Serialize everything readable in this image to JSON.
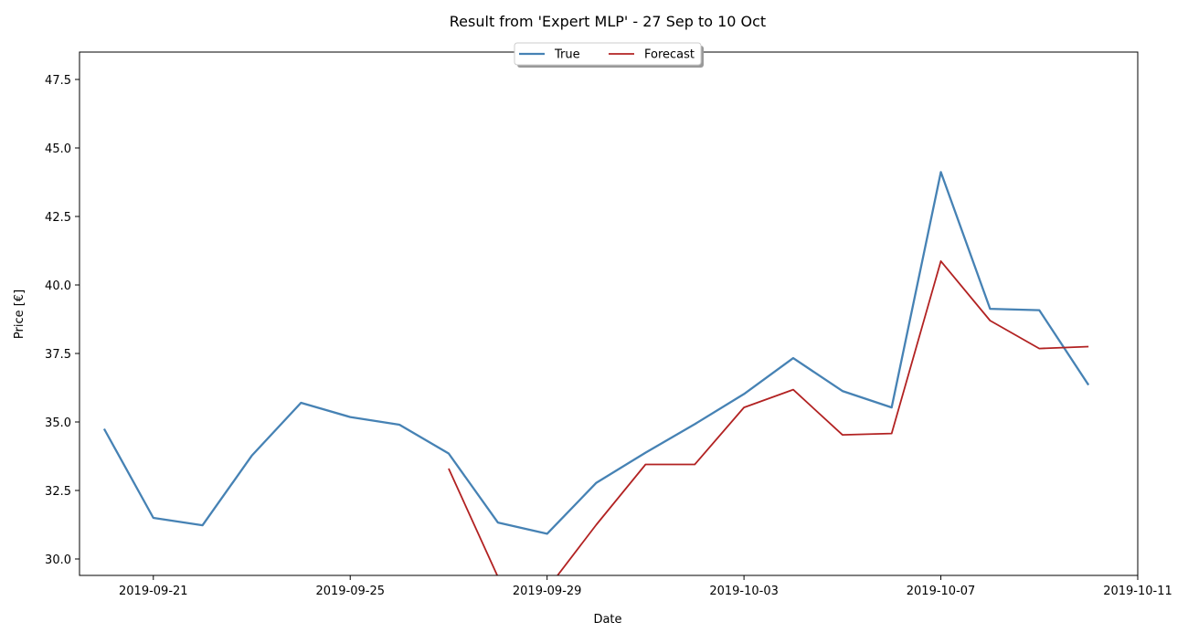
{
  "chart_data": {
    "type": "line",
    "title": "Result from 'Expert MLP' - 27 Sep to 10 Oct",
    "xlabel": "Date",
    "ylabel": "Price [€]",
    "xlim": [
      "2019-09-19T12:00",
      "2019-10-11"
    ],
    "ylim": [
      29.4,
      48.5
    ],
    "x_ticks": [
      "2019-09-21",
      "2019-09-25",
      "2019-09-29",
      "2019-10-03",
      "2019-10-07",
      "2019-10-11"
    ],
    "y_ticks": [
      30.0,
      32.5,
      35.0,
      37.5,
      40.0,
      42.5,
      45.0,
      47.5
    ],
    "y_tick_labels": [
      "30.0",
      "32.5",
      "35.0",
      "37.5",
      "40.0",
      "42.5",
      "45.0",
      "47.5"
    ],
    "grid": false,
    "legend_position": "top-center",
    "series": [
      {
        "name": "True",
        "color": "#4682b4",
        "x": [
          "2019-09-20",
          "2019-09-21",
          "2019-09-22",
          "2019-09-23",
          "2019-09-24",
          "2019-09-25",
          "2019-09-26",
          "2019-09-27",
          "2019-09-28",
          "2019-09-29",
          "2019-09-30",
          "2019-10-01",
          "2019-10-02",
          "2019-10-03",
          "2019-10-04",
          "2019-10-05",
          "2019-10-06",
          "2019-10-07",
          "2019-10-08",
          "2019-10-09",
          "2019-10-10"
        ],
        "values": [
          34.75,
          31.5,
          31.23,
          33.77,
          35.7,
          35.18,
          34.9,
          33.85,
          31.33,
          30.92,
          32.78,
          33.88,
          34.92,
          36.02,
          37.33,
          36.13,
          35.53,
          44.12,
          39.13,
          39.08,
          36.35
        ]
      },
      {
        "name": "Forecast",
        "color": "#b22222",
        "x": [
          "2019-09-27",
          "2019-09-28",
          "2019-09-29",
          "2019-09-30",
          "2019-10-01",
          "2019-10-02",
          "2019-10-03",
          "2019-10-04",
          "2019-10-05",
          "2019-10-06",
          "2019-10-07",
          "2019-10-08",
          "2019-10-09",
          "2019-10-10"
        ],
        "values": [
          33.3,
          29.35,
          28.9,
          31.25,
          33.45,
          33.45,
          35.53,
          36.18,
          34.53,
          34.58,
          40.87,
          38.7,
          37.68,
          37.75
        ]
      }
    ]
  }
}
